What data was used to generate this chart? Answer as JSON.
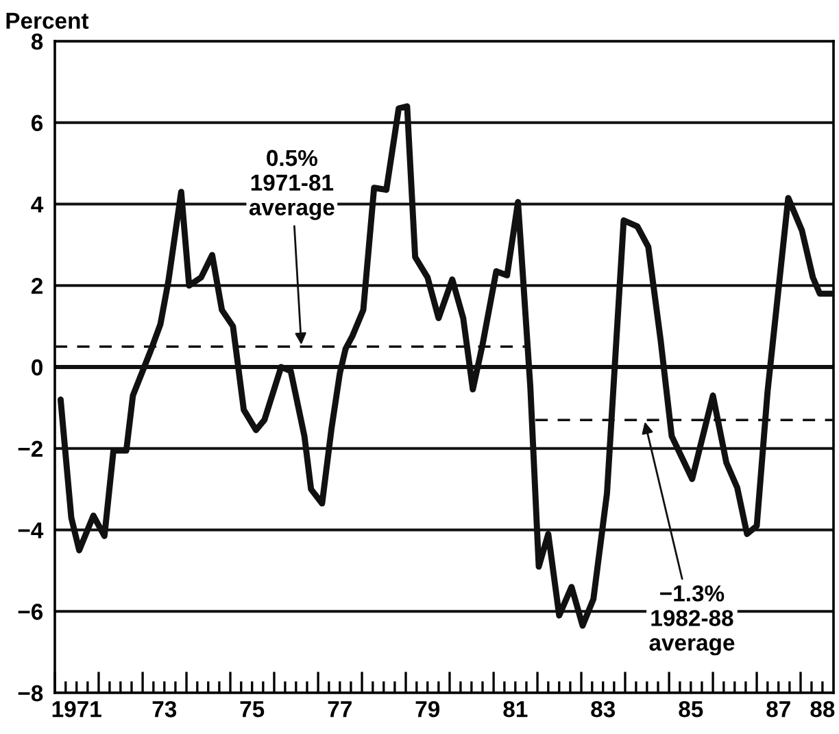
{
  "chart_data": {
    "type": "line",
    "ylabel": "Percent",
    "x": [
      "1971-02-18",
      "1971-05-18",
      "1971-07-23",
      "1971-11-18",
      "1972-02-18",
      "1972-05-03",
      "1972-08-18",
      "1972-10-12",
      "1973-03-09",
      "1973-05-29",
      "1973-08-03",
      "1973-11-18",
      "1974-01-23",
      "1974-05-03",
      "1974-08-03",
      "1974-10-23",
      "1975-01-23",
      "1975-04-23",
      "1975-08-03",
      "1975-10-12",
      "1976-02-28",
      "1976-05-18",
      "1976-09-09",
      "1976-11-03",
      "1977-02-03",
      "1977-04-23",
      "1977-07-01",
      "1977-08-18",
      "1977-10-12",
      "1978-01-12",
      "1978-04-12",
      "1978-07-23",
      "1978-11-03",
      "1979-01-12",
      "1979-03-20",
      "1979-07-01",
      "1979-10-01",
      "1980-01-23",
      "1980-04-23",
      "1980-07-12",
      "1980-10-01",
      "1981-01-23",
      "1981-04-23",
      "1981-07-23",
      "1981-11-03",
      "1982-01-12",
      "1982-04-01",
      "1982-07-01",
      "1982-10-12",
      "1983-01-12",
      "1983-04-12",
      "1983-08-03",
      "1983-12-20",
      "1984-04-12",
      "1984-07-12",
      "1984-10-23",
      "1985-01-23",
      "1985-07-12",
      "1986-01-01",
      "1986-04-23",
      "1986-07-23",
      "1986-10-12",
      "1987-01-01",
      "1987-04-01",
      "1987-09-20",
      "1988-01-12",
      "1988-04-12",
      "1988-06-09",
      "1988-09-20"
    ],
    "series": [
      {
        "color": "#111111",
        "values": [
          -0.8,
          -3.7,
          -4.5,
          -3.65,
          -4.15,
          -2.05,
          -2.05,
          -0.7,
          0.4,
          1.05,
          2.1,
          4.3,
          2.0,
          2.2,
          2.75,
          1.4,
          1.0,
          -1.05,
          -1.55,
          -1.3,
          0.0,
          -0.1,
          -1.7,
          -3.0,
          -3.35,
          -1.5,
          -0.15,
          0.45,
          0.75,
          1.4,
          4.4,
          4.35,
          6.35,
          6.4,
          2.7,
          2.2,
          1.2,
          2.15,
          1.2,
          -0.55,
          0.55,
          2.35,
          2.25,
          4.05,
          -0.5,
          -4.9,
          -4.1,
          -6.1,
          -5.4,
          -6.35,
          -5.7,
          -3.1,
          3.6,
          3.45,
          2.95,
          0.65,
          -1.7,
          -2.75,
          -0.7,
          -2.35,
          -2.97,
          -4.1,
          -3.9,
          -0.6,
          4.15,
          3.35,
          2.2,
          1.8,
          1.8
        ]
      },
      {
        "type": "line",
        "color": "#111111",
        "line_style": "dashed",
        "x": [
          "1971-01-01",
          "1981-10-01"
        ],
        "values": [
          0.5,
          0.5
        ]
      },
      {
        "type": "line",
        "color": "#111111",
        "line_style": "dashed",
        "x": [
          "1981-12-15",
          "1988-10-01"
        ],
        "values": [
          -1.3,
          -1.3
        ]
      }
    ],
    "ref_lines": [
      {
        "axis": "y",
        "value": 0,
        "color": "#111111"
      }
    ],
    "annotations": [
      {
        "text": "0.5%\n1971-81\naverage",
        "x": "1976-08-15",
        "y": 0.5
      },
      {
        "text": "−1.3%\n1982-88\naverage",
        "x": "1984-06-09",
        "y": -1.3
      }
    ],
    "xlim": [
      "1971-01-01",
      "1988-10-01"
    ],
    "ylim": [
      -8,
      8
    ],
    "yticks": [
      {
        "value": -8,
        "label": "−8"
      },
      {
        "value": -6,
        "label": "−6"
      },
      {
        "value": -4,
        "label": "−4"
      },
      {
        "value": -2,
        "label": "−2"
      },
      0,
      2,
      4,
      6,
      8
    ],
    "xticks": [
      {
        "value": "1971-01-01",
        "label": null
      },
      {
        "value": "1971-04-01",
        "label": null
      },
      {
        "value": "1971-07-01",
        "label": "1971"
      },
      {
        "value": "1971-10-01",
        "label": null
      },
      {
        "value": "1972-01-01",
        "label": null
      },
      {
        "value": "1972-04-01",
        "label": null
      },
      {
        "value": "1972-07-01",
        "label": null
      },
      {
        "value": "1972-10-01",
        "label": null
      },
      {
        "value": "1973-01-01",
        "label": null
      },
      {
        "value": "1973-04-01",
        "label": null
      },
      {
        "value": "1973-07-01",
        "label": "73"
      },
      {
        "value": "1973-10-01",
        "label": null
      },
      {
        "value": "1974-01-01",
        "label": null
      },
      {
        "value": "1974-04-01",
        "label": null
      },
      {
        "value": "1974-07-01",
        "label": null
      },
      {
        "value": "1974-10-01",
        "label": null
      },
      {
        "value": "1975-01-01",
        "label": null
      },
      {
        "value": "1975-04-01",
        "label": null
      },
      {
        "value": "1975-07-01",
        "label": "75"
      },
      {
        "value": "1975-10-01",
        "label": null
      },
      {
        "value": "1976-01-01",
        "label": null
      },
      {
        "value": "1976-04-01",
        "label": null
      },
      {
        "value": "1976-07-01",
        "label": null
      },
      {
        "value": "1976-10-01",
        "label": null
      },
      {
        "value": "1977-01-01",
        "label": null
      },
      {
        "value": "1977-04-01",
        "label": null
      },
      {
        "value": "1977-07-01",
        "label": "77"
      },
      {
        "value": "1977-10-01",
        "label": null
      },
      {
        "value": "1978-01-01",
        "label": null
      },
      {
        "value": "1978-04-01",
        "label": null
      },
      {
        "value": "1978-07-01",
        "label": null
      },
      {
        "value": "1978-10-01",
        "label": null
      },
      {
        "value": "1979-01-01",
        "label": null
      },
      {
        "value": "1979-04-01",
        "label": null
      },
      {
        "value": "1979-07-01",
        "label": "79"
      },
      {
        "value": "1979-10-01",
        "label": null
      },
      {
        "value": "1980-01-01",
        "label": null
      },
      {
        "value": "1980-04-01",
        "label": null
      },
      {
        "value": "1980-07-01",
        "label": null
      },
      {
        "value": "1980-10-01",
        "label": null
      },
      {
        "value": "1981-01-01",
        "label": null
      },
      {
        "value": "1981-04-01",
        "label": null
      },
      {
        "value": "1981-07-01",
        "label": "81"
      },
      {
        "value": "1981-10-01",
        "label": null
      },
      {
        "value": "1982-01-01",
        "label": null
      },
      {
        "value": "1982-04-01",
        "label": null
      },
      {
        "value": "1982-07-01",
        "label": null
      },
      {
        "value": "1982-10-01",
        "label": null
      },
      {
        "value": "1983-01-01",
        "label": null
      },
      {
        "value": "1983-04-01",
        "label": null
      },
      {
        "value": "1983-07-01",
        "label": "83"
      },
      {
        "value": "1983-10-01",
        "label": null
      },
      {
        "value": "1984-01-01",
        "label": null
      },
      {
        "value": "1984-04-01",
        "label": null
      },
      {
        "value": "1984-07-01",
        "label": null
      },
      {
        "value": "1984-10-01",
        "label": null
      },
      {
        "value": "1985-01-01",
        "label": null
      },
      {
        "value": "1985-04-01",
        "label": null
      },
      {
        "value": "1985-07-01",
        "label": "85"
      },
      {
        "value": "1985-10-01",
        "label": null
      },
      {
        "value": "1986-01-01",
        "label": null
      },
      {
        "value": "1986-04-01",
        "label": null
      },
      {
        "value": "1986-07-01",
        "label": null
      },
      {
        "value": "1986-10-01",
        "label": null
      },
      {
        "value": "1987-01-01",
        "label": null
      },
      {
        "value": "1987-04-01",
        "label": null
      },
      {
        "value": "1987-07-01",
        "label": "87"
      },
      {
        "value": "1987-10-01",
        "label": null
      },
      {
        "value": "1988-01-01",
        "label": null
      },
      {
        "value": "1988-04-01",
        "label": null
      },
      {
        "value": "1988-07-01",
        "label": "88"
      }
    ],
    "grid": "y"
  }
}
